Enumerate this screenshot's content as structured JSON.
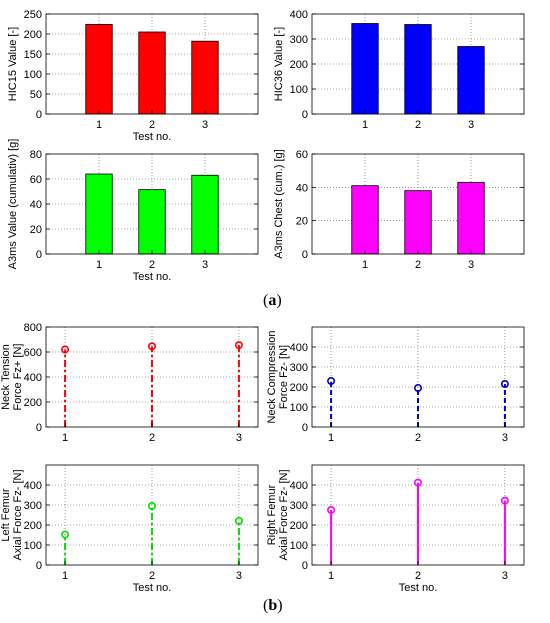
{
  "panel_labels": {
    "a": "a",
    "b": "b"
  },
  "x_label": "Test no.",
  "chart_data": [
    {
      "type": "bar",
      "title": "",
      "xlabel": "Test no.",
      "ylabel": "HIC15 Value [-]",
      "categories": [
        "1",
        "2",
        "3"
      ],
      "values": [
        224,
        205,
        182
      ],
      "ylim": [
        0,
        250
      ],
      "yticks": [
        0,
        50,
        100,
        150,
        200,
        250
      ],
      "grid": true,
      "color": "#ff0000"
    },
    {
      "type": "bar",
      "title": "",
      "xlabel": "",
      "ylabel": "HIC36 Value [-]",
      "categories": [
        "1",
        "2",
        "3"
      ],
      "values": [
        362,
        358,
        270
      ],
      "ylim": [
        0,
        400
      ],
      "yticks": [
        0,
        100,
        200,
        300,
        400
      ],
      "grid": true,
      "color": "#0000ff"
    },
    {
      "type": "bar",
      "title": "",
      "xlabel": "Test no.",
      "ylabel": "A3ms Value (cumulativ) [g]",
      "categories": [
        "1",
        "2",
        "3"
      ],
      "values": [
        64,
        51.5,
        63
      ],
      "ylim": [
        0,
        80
      ],
      "yticks": [
        0,
        20,
        40,
        60,
        80
      ],
      "grid": true,
      "color": "#00ff00"
    },
    {
      "type": "bar",
      "title": "",
      "xlabel": "",
      "ylabel": "A3ms Chest (cum.) [g]",
      "categories": [
        "1",
        "2",
        "3"
      ],
      "values": [
        41,
        38,
        43
      ],
      "ylim": [
        0,
        60
      ],
      "yticks": [
        0,
        20,
        40,
        60
      ],
      "grid": true,
      "color": "#ff00ff"
    },
    {
      "type": "stem",
      "title": "",
      "xlabel": "",
      "ylabel": [
        "Neck Tension",
        "Force Fz+ [N]"
      ],
      "categories": [
        "1",
        "2",
        "3"
      ],
      "values": [
        620,
        645,
        655
      ],
      "ylim": [
        0,
        800
      ],
      "yticks": [
        0,
        200,
        400,
        600,
        800
      ],
      "grid": true,
      "color": "#ff0000",
      "linestyle": "dashdot"
    },
    {
      "type": "stem",
      "title": "",
      "xlabel": "",
      "ylabel": [
        "Neck Compression",
        "Force Fz- [N]"
      ],
      "categories": [
        "1",
        "2",
        "3"
      ],
      "values": [
        230,
        195,
        215
      ],
      "ylim": [
        0,
        500
      ],
      "yticks": [
        0,
        100,
        200,
        300,
        400
      ],
      "grid": true,
      "color": "#0000cc",
      "linestyle": "dashed"
    },
    {
      "type": "stem",
      "title": "",
      "xlabel": "Test no.",
      "ylabel": [
        "Left Femur",
        "Axial Force Fz- [N]"
      ],
      "categories": [
        "1",
        "2",
        "3"
      ],
      "values": [
        152,
        295,
        220
      ],
      "ylim": [
        0,
        500
      ],
      "yticks": [
        0,
        100,
        200,
        300,
        400
      ],
      "grid": true,
      "color": "#00dd00",
      "linestyle": "dashdot"
    },
    {
      "type": "stem",
      "title": "",
      "xlabel": "Test no.",
      "ylabel": [
        "Right Femur",
        "Axial Force Fz- [N]"
      ],
      "categories": [
        "1",
        "2",
        "3"
      ],
      "values": [
        275,
        412,
        322
      ],
      "ylim": [
        0,
        500
      ],
      "yticks": [
        0,
        100,
        200,
        300,
        400
      ],
      "grid": true,
      "color": "#ff00ff",
      "linestyle": "solid"
    }
  ]
}
